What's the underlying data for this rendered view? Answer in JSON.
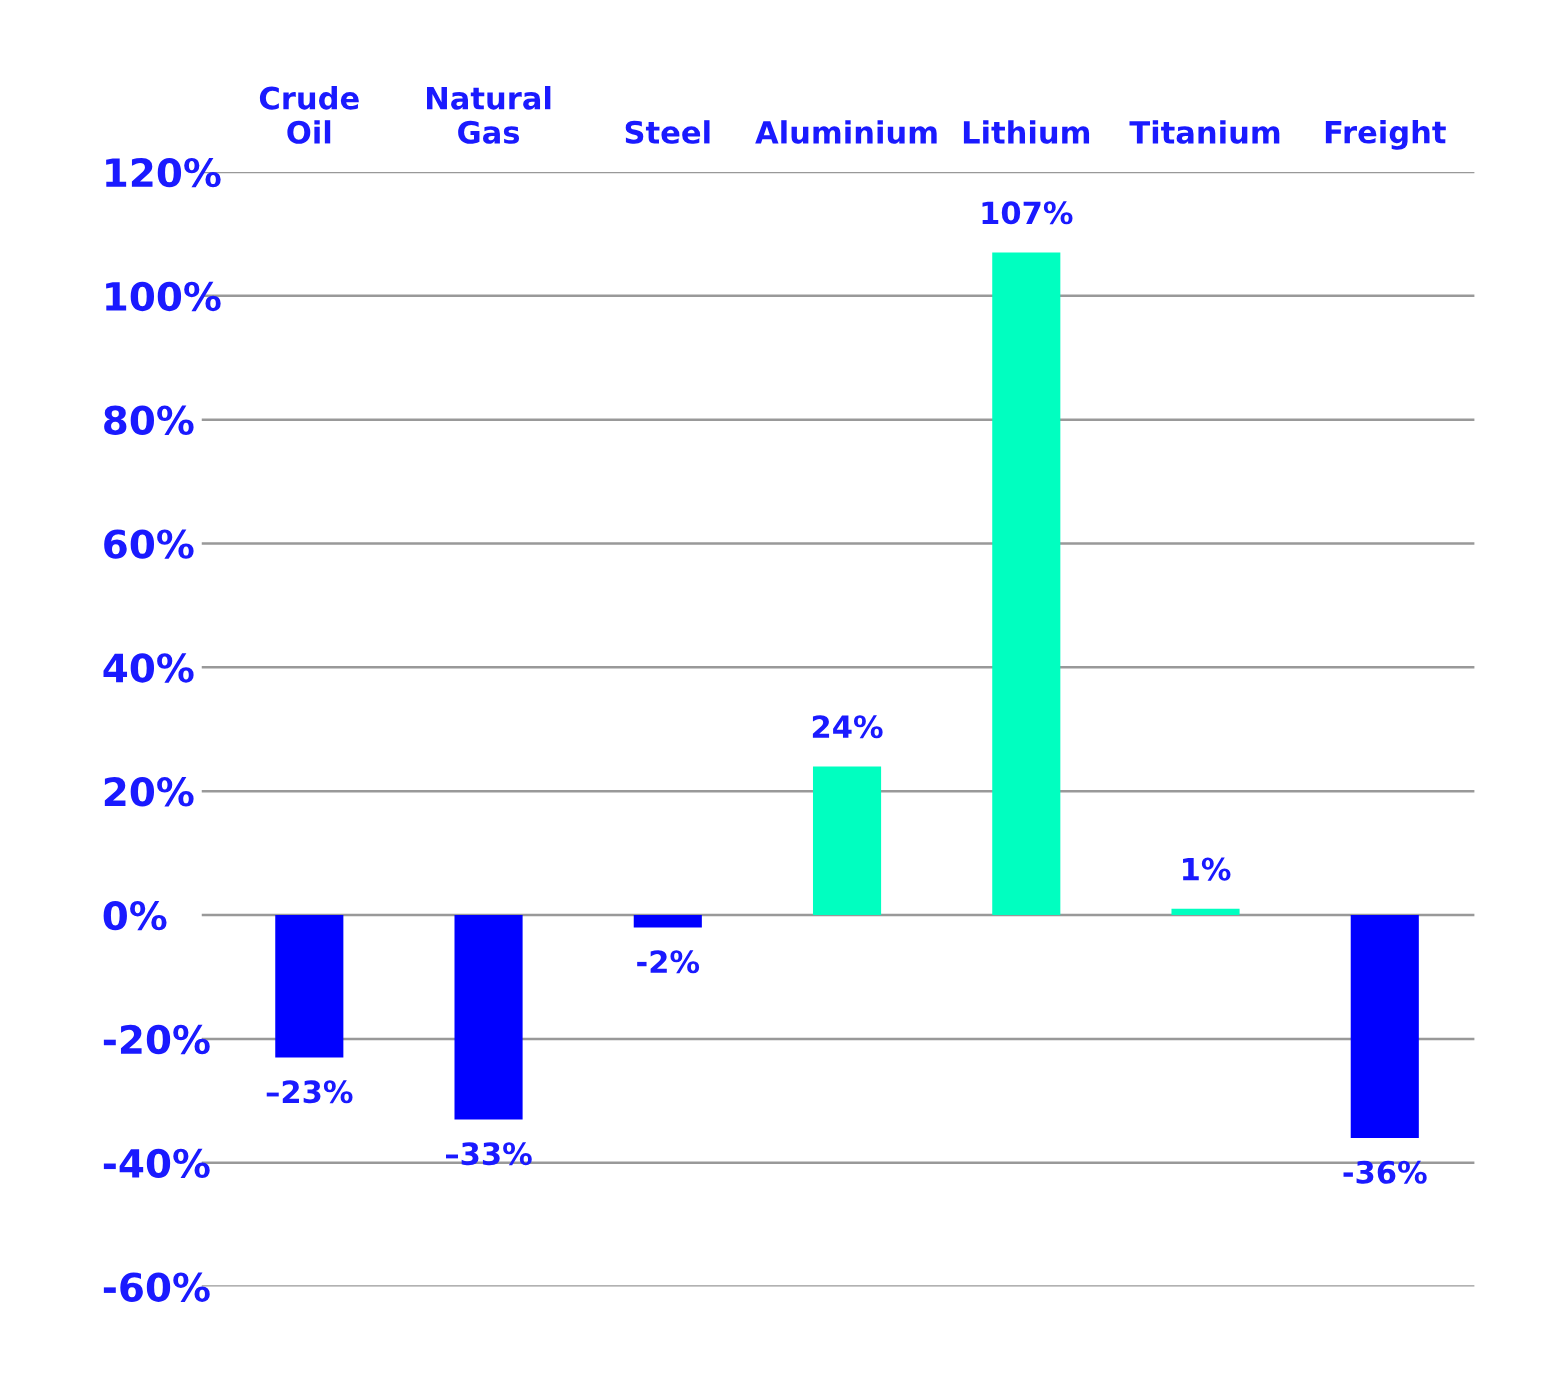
{
  "chart_data": {
    "type": "bar",
    "categories": [
      "Crude\nOil",
      "Natural\nGas",
      "Steel",
      "Aluminium",
      "Lithium",
      "Titanium",
      "Freight"
    ],
    "values": [
      -23,
      -33,
      -2,
      24,
      107,
      1,
      -36
    ],
    "colors": [
      "#0000ff",
      "#0000ff",
      "#0000ff",
      "#00ffc0",
      "#00ffc0",
      "#00ffc0",
      "#0000ff"
    ],
    "value_labels": [
      "–23%",
      "–33%",
      "-2%",
      "24%",
      "107%",
      "1%",
      "-36%"
    ],
    "ylim": [
      -60,
      120
    ],
    "yticks": [
      {
        "value": -60,
        "label": "-60%"
      },
      {
        "value": -40,
        "label": "-40%"
      },
      {
        "value": -20,
        "label": "-20%"
      },
      {
        "value": 0,
        "label": "0%"
      },
      {
        "value": 20,
        "label": "20%"
      },
      {
        "value": 40,
        "label": "40%"
      },
      {
        "value": 60,
        "label": "60%"
      },
      {
        "value": 80,
        "label": "80%"
      },
      {
        "value": 100,
        "label": "100%"
      },
      {
        "value": 120,
        "label": "120%"
      }
    ],
    "grid": "y",
    "legend": false
  }
}
